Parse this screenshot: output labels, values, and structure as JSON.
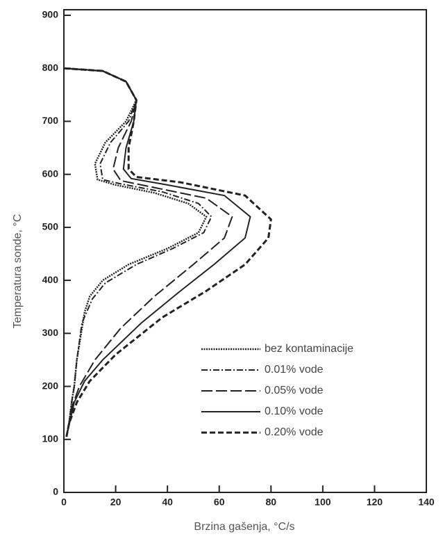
{
  "chart_data": {
    "type": "line",
    "x_label": "Brzina gašenja, °C/s",
    "y_label": "Temperatura sonde, °C",
    "xlim": [
      0,
      140
    ],
    "xticks": [
      0,
      20,
      40,
      60,
      80,
      100,
      120,
      140
    ],
    "ylim": [
      0,
      900
    ],
    "yticks": [
      0,
      100,
      200,
      300,
      400,
      500,
      600,
      700,
      800,
      900
    ],
    "series": [
      {
        "name": "bez kontaminacije",
        "color": "#222222",
        "dash": "2,1.5",
        "width": 2.5,
        "x": [
          0,
          15,
          24,
          28,
          24,
          16,
          12,
          13,
          20,
          35,
          48,
          55,
          52,
          40,
          25,
          15,
          10,
          8,
          7,
          5,
          4,
          3,
          2,
          1
        ],
        "values": [
          800,
          795,
          775,
          740,
          700,
          660,
          620,
          590,
          580,
          565,
          545,
          520,
          490,
          460,
          430,
          400,
          370,
          340,
          310,
          250,
          200,
          170,
          130,
          105
        ]
      },
      {
        "name": "0.01% vode",
        "color": "#222222",
        "dash": "9,3,2,3",
        "width": 2,
        "x": [
          0,
          15,
          24,
          28,
          25,
          18,
          14,
          15,
          22,
          38,
          52,
          57,
          54,
          42,
          28,
          16,
          11,
          7,
          5,
          4,
          3,
          2,
          1
        ],
        "values": [
          800,
          795,
          775,
          740,
          700,
          660,
          620,
          590,
          582,
          567,
          545,
          520,
          490,
          460,
          430,
          395,
          365,
          320,
          250,
          200,
          170,
          130,
          105
        ]
      },
      {
        "name": "0.05% vode",
        "color": "#222222",
        "dash": "16,5",
        "width": 2,
        "x": [
          0,
          15,
          24,
          28,
          26,
          21,
          19,
          22,
          35,
          55,
          65,
          62,
          50,
          35,
          22,
          12,
          6,
          3,
          1
        ],
        "values": [
          800,
          795,
          775,
          740,
          700,
          650,
          610,
          588,
          575,
          555,
          520,
          480,
          430,
          370,
          310,
          250,
          200,
          160,
          105
        ]
      },
      {
        "name": "0.10% vode",
        "color": "#222222",
        "dash": "none",
        "width": 2,
        "x": [
          0,
          15,
          24,
          28,
          27,
          24,
          23,
          26,
          40,
          62,
          72,
          70,
          58,
          45,
          30,
          15,
          8,
          4,
          1
        ],
        "values": [
          800,
          795,
          775,
          740,
          700,
          650,
          610,
          592,
          580,
          560,
          520,
          480,
          430,
          380,
          320,
          250,
          210,
          170,
          105
        ]
      },
      {
        "name": "0.20% vode",
        "color": "#222222",
        "dash": "8,4",
        "width": 3,
        "x": [
          0,
          15,
          24,
          28,
          27,
          25,
          25,
          28,
          45,
          70,
          80,
          79,
          70,
          55,
          38,
          20,
          10,
          5,
          2,
          1
        ],
        "values": [
          800,
          795,
          775,
          740,
          700,
          650,
          610,
          595,
          585,
          560,
          515,
          480,
          430,
          380,
          330,
          260,
          210,
          170,
          130,
          105
        ]
      }
    ]
  }
}
